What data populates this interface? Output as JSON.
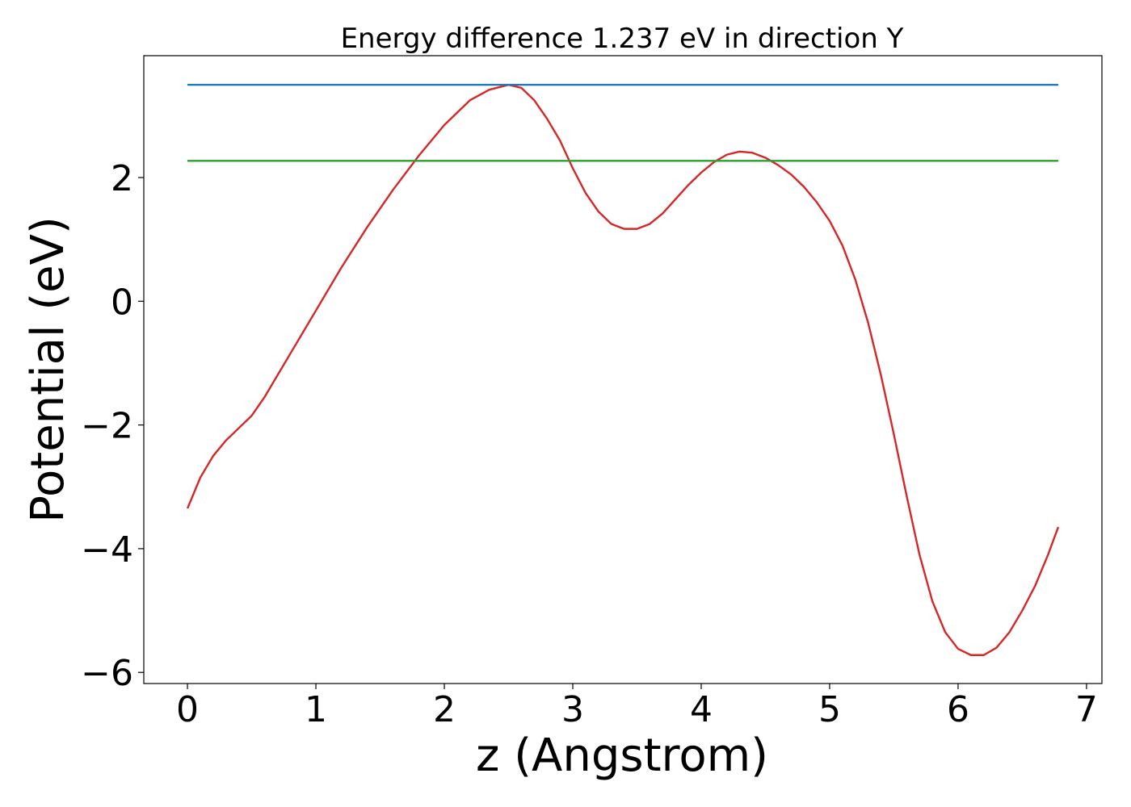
{
  "chart_data": {
    "type": "line",
    "title": "Energy difference 1.237 eV in direction Y",
    "xlabel": "z (Angstrom)",
    "ylabel": "Potential (eV)",
    "xlim": [
      -0.34,
      7.12
    ],
    "ylim": [
      -6.18,
      3.97
    ],
    "xticks": [
      0,
      1,
      2,
      3,
      4,
      5,
      6,
      7
    ],
    "yticks": [
      -6,
      -4,
      -2,
      0,
      2
    ],
    "grid": false,
    "series": [
      {
        "color": "#d62728",
        "x": [
          0.0,
          0.1,
          0.2,
          0.3,
          0.4,
          0.5,
          0.6,
          0.7,
          0.8,
          0.9,
          1.0,
          1.2,
          1.4,
          1.6,
          1.8,
          2.0,
          2.2,
          2.35,
          2.5,
          2.6,
          2.7,
          2.8,
          2.9,
          3.0,
          3.1,
          3.2,
          3.3,
          3.4,
          3.5,
          3.6,
          3.7,
          3.8,
          3.9,
          4.0,
          4.1,
          4.2,
          4.3,
          4.4,
          4.5,
          4.6,
          4.7,
          4.8,
          4.9,
          5.0,
          5.1,
          5.2,
          5.3,
          5.4,
          5.5,
          5.6,
          5.7,
          5.8,
          5.9,
          6.0,
          6.1,
          6.2,
          6.3,
          6.4,
          6.5,
          6.6,
          6.7,
          6.78
        ],
        "y": [
          -3.35,
          -2.85,
          -2.5,
          -2.25,
          -2.05,
          -1.85,
          -1.55,
          -1.2,
          -0.85,
          -0.5,
          -0.15,
          0.55,
          1.2,
          1.8,
          2.35,
          2.85,
          3.25,
          3.42,
          3.5,
          3.45,
          3.25,
          2.95,
          2.6,
          2.15,
          1.75,
          1.45,
          1.25,
          1.17,
          1.17,
          1.25,
          1.42,
          1.65,
          1.88,
          2.08,
          2.25,
          2.37,
          2.42,
          2.4,
          2.32,
          2.2,
          2.05,
          1.85,
          1.6,
          1.3,
          0.9,
          0.35,
          -0.35,
          -1.2,
          -2.15,
          -3.15,
          -4.1,
          -4.85,
          -5.35,
          -5.62,
          -5.72,
          -5.72,
          -5.6,
          -5.35,
          -5.0,
          -4.6,
          -4.1,
          -3.65
        ]
      },
      {
        "color": "#1f77b4",
        "x": [
          0.0,
          6.78
        ],
        "y": [
          3.5,
          3.5
        ]
      },
      {
        "color": "#2ca02c",
        "x": [
          0.0,
          6.78
        ],
        "y": [
          2.27,
          2.27
        ]
      }
    ]
  }
}
